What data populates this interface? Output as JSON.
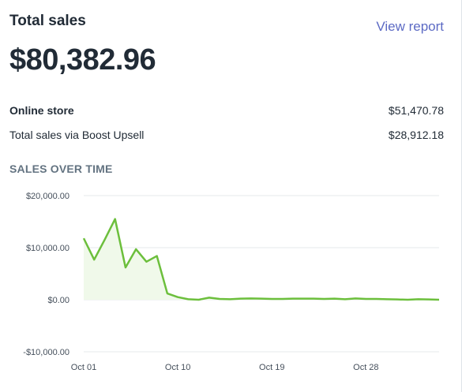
{
  "card": {
    "title": "Total sales",
    "view_report": "View report",
    "total": "$80,382.96"
  },
  "breakdown": [
    {
      "label": "Online store",
      "value": "$51,470.78"
    },
    {
      "label": "Total sales via Boost Upsell",
      "value": "$28,912.18"
    }
  ],
  "section_title": "SALES OVER TIME",
  "colors": {
    "line": "#6cbf3c",
    "fill": "#f0f9ea",
    "grid": "#e6e8eb",
    "link": "#5c6ac4"
  },
  "chart_data": {
    "type": "area",
    "title": "",
    "xlabel": "",
    "ylabel": "",
    "x_tick_labels": [
      "Oct 01",
      "Oct 10",
      "Oct 19",
      "Oct 28"
    ],
    "y_tick_labels": [
      "$20,000.00",
      "$10,000.00",
      "$0.00",
      "-$10,000.00"
    ],
    "ylim": [
      -10000,
      20000
    ],
    "y_ticks": [
      20000,
      10000,
      0,
      -10000
    ],
    "x_tick_index": [
      0,
      9,
      18,
      27
    ],
    "series": [
      {
        "values": [
          11800,
          7700,
          11500,
          15500,
          6200,
          9700,
          7300,
          8400,
          1200,
          500,
          100,
          0,
          400,
          150,
          100,
          200,
          250,
          200,
          150,
          150,
          200,
          200,
          200,
          150,
          200,
          100,
          250,
          150,
          150,
          100,
          50,
          0,
          100,
          50,
          0
        ]
      }
    ]
  }
}
